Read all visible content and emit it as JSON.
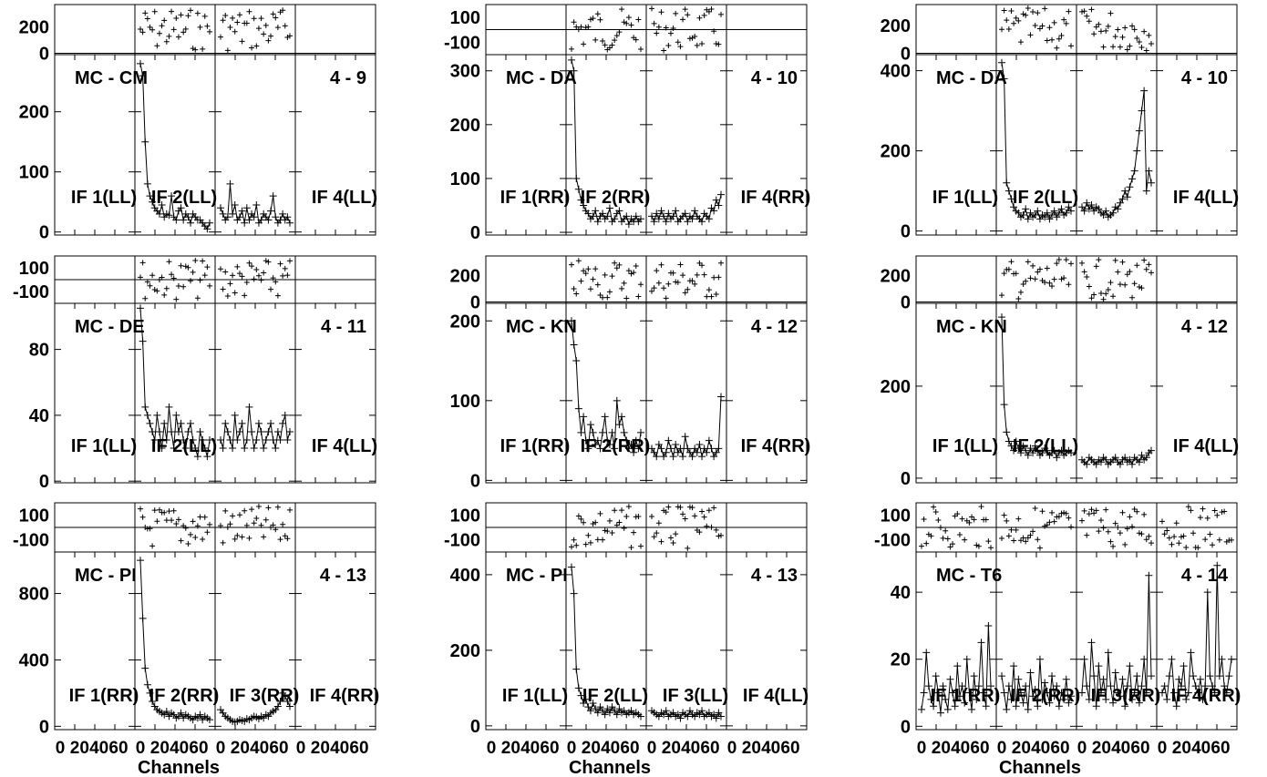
{
  "figure": {
    "xlabel": "Channels",
    "x_tick_labels": [
      "0",
      "20",
      "40",
      "60",
      "0",
      "20",
      "40",
      "60",
      "0",
      "20",
      "40",
      "60",
      "0",
      "20",
      "40",
      "60"
    ]
  },
  "chart_data": [
    {
      "type": "line",
      "baseline": "MC - CM",
      "range": "4 - 9",
      "if_labels": [
        "IF 1(LL)",
        "IF 2(LL)",
        "",
        "IF 4(LL)"
      ],
      "amp": {
        "yticks": [
          0,
          100,
          200
        ],
        "ylim": [
          -5,
          295
        ],
        "segments": [
          {
            "panel": 0,
            "values": []
          },
          {
            "panel": 1,
            "values": [
              280,
              260,
              150,
              80,
              60,
              50,
              40,
              35,
              30,
              45,
              25,
              30,
              28,
              60,
              25,
              20,
              35,
              40,
              20,
              30,
              25,
              15,
              30,
              25,
              20,
              20,
              15,
              10,
              5,
              15
            ]
          },
          {
            "panel": 2,
            "values": [
              40,
              30,
              20,
              25,
              80,
              30,
              45,
              20,
              25,
              35,
              15,
              40,
              20,
              30,
              25,
              45,
              15,
              20,
              30,
              25,
              20,
              35,
              60,
              25,
              15,
              20,
              30,
              20,
              25,
              15
            ]
          },
          {
            "panel": 3,
            "values": []
          }
        ]
      },
      "phase": {
        "yticks": [
          0,
          200
        ],
        "ylabels": [
          "0",
          "200"
        ],
        "ylim": [
          -10,
          370
        ],
        "line": 0
      }
    },
    {
      "type": "line",
      "baseline": "MC - DA",
      "range": "4 - 10",
      "if_labels": [
        "IF 1(RR)",
        "IF 2(RR)",
        "",
        "IF 4(RR)"
      ],
      "amp": {
        "yticks": [
          0,
          100,
          200,
          300
        ],
        "ylim": [
          -5,
          330
        ],
        "segments": [
          {
            "panel": 0,
            "values": []
          },
          {
            "panel": 1,
            "values": [
              320,
              300,
              100,
              80,
              60,
              50,
              40,
              35,
              25,
              30,
              40,
              20,
              30,
              35,
              25,
              30,
              45,
              20,
              25,
              35,
              40,
              20,
              25,
              30,
              15,
              25,
              20,
              30,
              20,
              25
            ]
          },
          {
            "panel": 2,
            "values": [
              30,
              20,
              35,
              25,
              40,
              30,
              20,
              35,
              25,
              30,
              40,
              20,
              25,
              30,
              35,
              20,
              30,
              25,
              40,
              30,
              25,
              20,
              35,
              30,
              25,
              45,
              40,
              60,
              50,
              70
            ]
          },
          {
            "panel": 3,
            "values": []
          }
        ]
      },
      "phase": {
        "yticks": [
          -100,
          100
        ],
        "ylabels": [
          "-100",
          "100"
        ],
        "ylim": [
          -200,
          200
        ],
        "line": 0
      }
    },
    {
      "type": "line",
      "baseline": "MC - DA",
      "range": "4 - 10",
      "if_labels": [
        "IF 1(LL)",
        "IF 2(LL)",
        "",
        "IF 4(LL)"
      ],
      "amp": {
        "yticks": [
          0,
          200,
          400
        ],
        "ylim": [
          -10,
          440
        ],
        "segments": [
          {
            "panel": 0,
            "values": []
          },
          {
            "panel": 1,
            "values": [
              420,
              380,
              120,
              100,
              80,
              60,
              50,
              45,
              35,
              40,
              55,
              30,
              45,
              35,
              40,
              50,
              30,
              40,
              35,
              45,
              30,
              40,
              50,
              35,
              45,
              55,
              40,
              45,
              60,
              50
            ]
          },
          {
            "panel": 2,
            "values": [
              60,
              50,
              70,
              55,
              65,
              50,
              60,
              55,
              45,
              40,
              50,
              35,
              40,
              45,
              60,
              55,
              70,
              80,
              100,
              85,
              110,
              130,
              150,
              200,
              250,
              300,
              350,
              100,
              150,
              120
            ]
          },
          {
            "panel": 3,
            "values": []
          }
        ]
      },
      "phase": {
        "yticks": [
          0,
          200
        ],
        "ylabels": [
          "0",
          "200"
        ],
        "ylim": [
          -10,
          350
        ],
        "line": 0
      }
    },
    {
      "type": "line",
      "baseline": "MC - DE",
      "range": "4 - 11",
      "if_labels": [
        "IF 1(LL)",
        "IF 2(LL)",
        "",
        "IF 4(LL)"
      ],
      "amp": {
        "yticks": [
          0,
          40,
          80
        ],
        "ylim": [
          -1,
          108
        ],
        "segments": [
          {
            "panel": 0,
            "values": []
          },
          {
            "panel": 1,
            "values": [
              105,
              85,
              45,
              40,
              35,
              30,
              25,
              40,
              30,
              20,
              35,
              25,
              45,
              30,
              20,
              40,
              30,
              35,
              25,
              20,
              30,
              35,
              25,
              20,
              15,
              30,
              25,
              20,
              15,
              25
            ]
          },
          {
            "panel": 2,
            "values": [
              25,
              20,
              35,
              30,
              25,
              20,
              40,
              25,
              30,
              35,
              20,
              25,
              45,
              30,
              20,
              25,
              35,
              30,
              20,
              25,
              30,
              35,
              25,
              20,
              30,
              25,
              35,
              40,
              25,
              30
            ]
          },
          {
            "panel": 3,
            "values": []
          }
        ]
      },
      "phase": {
        "yticks": [
          -100,
          100
        ],
        "ylabels": [
          "-100",
          "100"
        ],
        "ylim": [
          -200,
          200
        ],
        "line": 0
      }
    },
    {
      "type": "line",
      "baseline": "MC - KN",
      "range": "4 - 12",
      "if_labels": [
        "IF 1(RR)",
        "IF 2(RR)",
        "",
        "IF 4(RR)"
      ],
      "amp": {
        "yticks": [
          0,
          100,
          200
        ],
        "ylim": [
          -3,
          222
        ],
        "segments": [
          {
            "panel": 0,
            "values": []
          },
          {
            "panel": 1,
            "values": [
              200,
              170,
              150,
              90,
              60,
              80,
              50,
              40,
              70,
              60,
              45,
              50,
              40,
              60,
              80,
              50,
              45,
              60,
              40,
              100,
              70,
              80,
              60,
              50,
              40,
              45,
              35,
              50,
              40,
              60
            ]
          },
          {
            "panel": 2,
            "values": [
              40,
              35,
              30,
              45,
              40,
              30,
              35,
              50,
              40,
              30,
              45,
              35,
              40,
              30,
              55,
              40,
              35,
              30,
              40,
              35,
              45,
              30,
              40,
              35,
              50,
              40,
              30,
              35,
              40,
              105
            ]
          },
          {
            "panel": 3,
            "values": []
          }
        ]
      },
      "phase": {
        "yticks": [
          0,
          200
        ],
        "ylabels": [
          "0",
          "200"
        ],
        "ylim": [
          -10,
          350
        ],
        "line": 0
      }
    },
    {
      "type": "line",
      "baseline": "MC - KN",
      "range": "4 - 12",
      "if_labels": [
        "IF 1(LL)",
        "IF 2(LL)",
        "",
        "IF 4(LL)"
      ],
      "amp": {
        "yticks": [
          0,
          200
        ],
        "ylim": [
          -10,
          380
        ],
        "segments": [
          {
            "panel": 0,
            "values": []
          },
          {
            "panel": 1,
            "values": [
              350,
              160,
              100,
              80,
              70,
              60,
              80,
              65,
              55,
              70,
              60,
              50,
              65,
              55,
              70,
              60,
              50,
              55,
              65,
              60,
              50,
              55,
              60,
              45,
              55,
              60,
              50,
              55,
              60,
              55
            ]
          },
          {
            "panel": 2,
            "values": [
              40,
              35,
              30,
              45,
              40,
              35,
              30,
              40,
              35,
              45,
              40,
              30,
              35,
              40,
              45,
              35,
              30,
              40,
              45,
              35,
              40,
              30,
              45,
              40,
              35,
              50,
              40,
              45,
              55,
              60
            ]
          },
          {
            "panel": 3,
            "values": []
          }
        ]
      },
      "phase": {
        "yticks": [
          0,
          200
        ],
        "ylabels": [
          "0",
          "200"
        ],
        "ylim": [
          -10,
          350
        ],
        "line": 0
      }
    },
    {
      "type": "line",
      "baseline": "MC - PI",
      "range": "4 - 13",
      "if_labels": [
        "IF 1(RR)",
        "IF 2(RR)",
        "IF 3(RR)",
        "IF 4(RR)"
      ],
      "amp": {
        "yticks": [
          0,
          400,
          800
        ],
        "ylim": [
          -20,
          1050
        ],
        "segments": [
          {
            "panel": 0,
            "values": []
          },
          {
            "panel": 1,
            "values": [
              1000,
              650,
              350,
              250,
              200,
              150,
              120,
              100,
              90,
              80,
              70,
              90,
              60,
              80,
              70,
              50,
              60,
              80,
              50,
              70,
              60,
              50,
              40,
              60,
              50,
              70,
              40,
              60,
              50,
              40
            ]
          },
          {
            "panel": 2,
            "values": [
              100,
              80,
              60,
              50,
              40,
              30,
              25,
              30,
              40,
              35,
              30,
              45,
              40,
              50,
              60,
              55,
              45,
              60,
              50,
              70,
              60,
              80,
              90,
              100,
              120,
              150,
              200,
              180,
              150,
              120
            ]
          },
          {
            "panel": 3,
            "values": []
          }
        ]
      },
      "phase": {
        "yticks": [
          -100,
          100
        ],
        "ylabels": [
          "-100",
          "100"
        ],
        "ylim": [
          -200,
          200
        ],
        "line": 0
      }
    },
    {
      "type": "line",
      "baseline": "MC - PI",
      "range": "4 - 13",
      "if_labels": [
        "IF 1(LL)",
        "IF 2(LL)",
        "IF 3(LL)",
        "IF 4(LL)"
      ],
      "amp": {
        "yticks": [
          0,
          200,
          400
        ],
        "ylim": [
          -10,
          460
        ],
        "segments": [
          {
            "panel": 0,
            "values": []
          },
          {
            "panel": 1,
            "values": [
              420,
              350,
              150,
              100,
              80,
              60,
              70,
              50,
              40,
              60,
              45,
              35,
              50,
              40,
              30,
              45,
              35,
              50,
              40,
              30,
              45,
              35,
              40,
              30,
              35,
              40,
              30,
              35,
              30,
              25
            ]
          },
          {
            "panel": 2,
            "values": [
              40,
              35,
              30,
              25,
              35,
              30,
              40,
              25,
              30,
              35,
              25,
              30,
              20,
              35,
              30,
              25,
              40,
              30,
              25,
              35,
              30,
              40,
              25,
              30,
              35,
              25,
              30,
              20,
              35,
              25
            ]
          },
          {
            "panel": 3,
            "values": []
          }
        ]
      },
      "phase": {
        "yticks": [
          -100,
          100
        ],
        "ylabels": [
          "-100",
          "100"
        ],
        "ylim": [
          -200,
          200
        ],
        "line": 0
      }
    },
    {
      "type": "line",
      "baseline": "MC - T6",
      "range": "4 - 14",
      "if_labels": [
        "IF 1(RR)",
        "IF 2(RR)",
        "IF 3(RR)",
        "IF 4(RR)"
      ],
      "amp": {
        "yticks": [
          0,
          20,
          40
        ],
        "ylim": [
          -1,
          52
        ],
        "segments": [
          {
            "panel": 0,
            "values": [
              5,
              10,
              22,
              12,
              8,
              6,
              15,
              10,
              4,
              12,
              8,
              5,
              14,
              10,
              6,
              18,
              9,
              12,
              7,
              20,
              10,
              5,
              15,
              8,
              12,
              25,
              10,
              6,
              30,
              12
            ]
          },
          {
            "panel": 1,
            "values": [
              15,
              10,
              5,
              12,
              8,
              18,
              6,
              14,
              10,
              7,
              12,
              5,
              16,
              9,
              11,
              6,
              20,
              8,
              13,
              10,
              7,
              15,
              9,
              12,
              6,
              10,
              8,
              14,
              7,
              9
            ]
          },
          {
            "panel": 2,
            "values": [
              10,
              20,
              12,
              8,
              25,
              15,
              6,
              18,
              10,
              14,
              8,
              22,
              12,
              7,
              16,
              10,
              9,
              14,
              6,
              12,
              18,
              8,
              10,
              15,
              7,
              12,
              20,
              10,
              45,
              15
            ]
          },
          {
            "panel": 3,
            "values": [
              10,
              12,
              8,
              15,
              20,
              10,
              6,
              14,
              12,
              18,
              8,
              10,
              22,
              15,
              12,
              10,
              14,
              8,
              12,
              40,
              15,
              12,
              10,
              48,
              15,
              20,
              12,
              10,
              15,
              20
            ]
          }
        ]
      },
      "phase": {
        "yticks": [
          -100,
          100
        ],
        "ylabels": [
          "-100",
          "100"
        ],
        "ylim": [
          -200,
          200
        ],
        "line": 0
      }
    }
  ]
}
